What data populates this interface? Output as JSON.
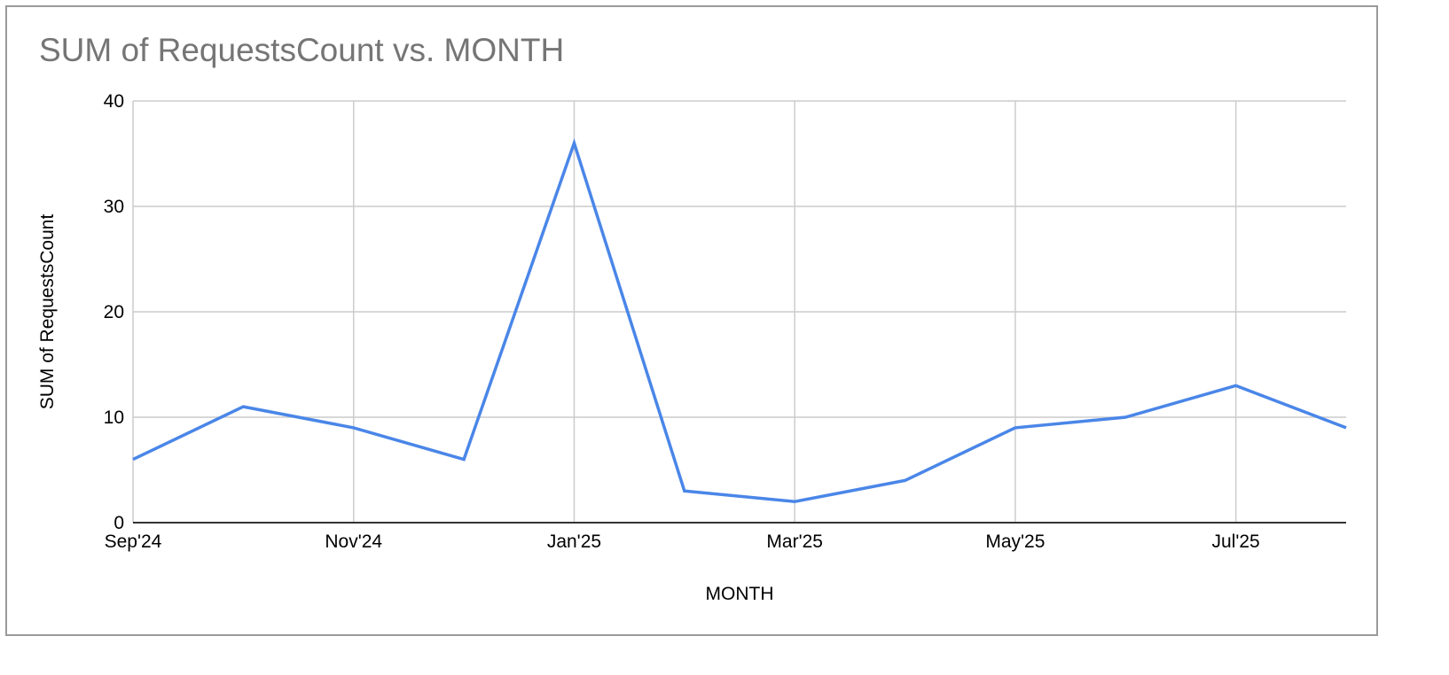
{
  "chart_data": {
    "type": "line",
    "title": "SUM of RequestsCount vs. MONTH",
    "xlabel": "MONTH",
    "ylabel": "SUM of RequestsCount",
    "x": [
      "2024-09",
      "2024-10",
      "2024-11",
      "2024-12",
      "2025-01",
      "2025-02",
      "2025-03",
      "2025-04",
      "2025-05",
      "2025-06",
      "2025-07",
      "2025-08"
    ],
    "x_tick_labels": [
      {
        "x": "2024-09",
        "label": "Sep'24"
      },
      {
        "x": "2024-11",
        "label": "Nov'24"
      },
      {
        "x": "2025-01",
        "label": "Jan'25"
      },
      {
        "x": "2025-03",
        "label": "Mar'25"
      },
      {
        "x": "2025-05",
        "label": "May'25"
      },
      {
        "x": "2025-07",
        "label": "Jul'25"
      }
    ],
    "y_ticks": [
      0,
      10,
      20,
      30,
      40
    ],
    "ylim": [
      0,
      40
    ],
    "grid": true,
    "legend": "none",
    "series": [
      {
        "values": [
          6,
          11,
          9,
          6,
          36,
          3,
          2,
          4,
          9,
          10,
          13,
          9
        ],
        "color": "#4a86e8"
      }
    ]
  }
}
